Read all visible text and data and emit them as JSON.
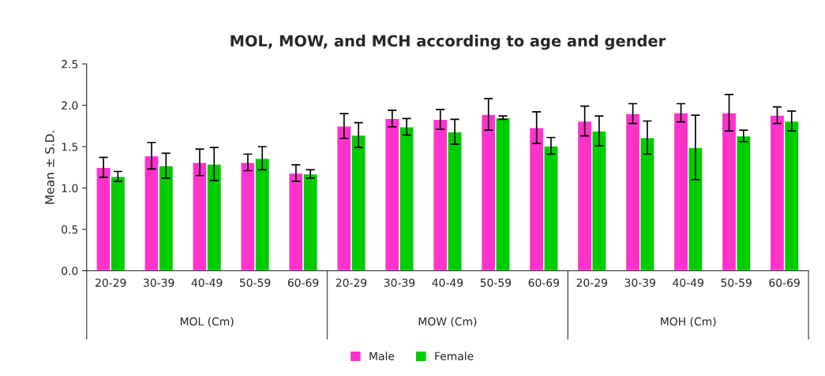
{
  "chart_data": {
    "type": "bar",
    "title": "MOL, MOW, and MCH according to age and gender",
    "ylabel": "Mean ± S.D.",
    "categories": [
      "20-29",
      "30-39",
      "40-49",
      "50-59",
      "60-69",
      "20-29",
      "30-39",
      "40-49",
      "50-59",
      "60-69",
      "20-29",
      "30-39",
      "40-49",
      "50-59",
      "60-69"
    ],
    "annotations": [
      "MOL (Cm)",
      "MOW (Cm)",
      "MOH (Cm)"
    ],
    "series": [
      {
        "name": "Male",
        "color": "#ff33cc",
        "values": [
          1.25,
          1.39,
          1.31,
          1.31,
          1.18,
          1.75,
          1.84,
          1.83,
          1.89,
          1.73,
          1.81,
          1.9,
          1.91,
          1.91,
          1.88
        ],
        "errors": [
          0.12,
          0.16,
          0.16,
          0.1,
          0.1,
          0.15,
          0.1,
          0.12,
          0.19,
          0.19,
          0.18,
          0.12,
          0.11,
          0.22,
          0.1
        ]
      },
      {
        "name": "Female",
        "color": "#00cc00",
        "values": [
          1.14,
          1.27,
          1.29,
          1.36,
          1.17,
          1.64,
          1.74,
          1.68,
          1.85,
          1.51,
          1.69,
          1.61,
          1.49,
          1.63,
          1.81
        ],
        "errors": [
          0.06,
          0.15,
          0.2,
          0.14,
          0.05,
          0.15,
          0.1,
          0.15,
          0.02,
          0.1,
          0.18,
          0.2,
          0.39,
          0.07,
          0.12
        ]
      }
    ],
    "ylim": [
      0,
      2.5
    ],
    "yticks": [
      {
        "value": 0,
        "label": "0.0"
      },
      0.5,
      {
        "value": 1,
        "label": "1.0"
      },
      1.5,
      {
        "value": 2,
        "label": "2.0"
      },
      2.5
    ],
    "grid": false,
    "legend": "bottom"
  }
}
